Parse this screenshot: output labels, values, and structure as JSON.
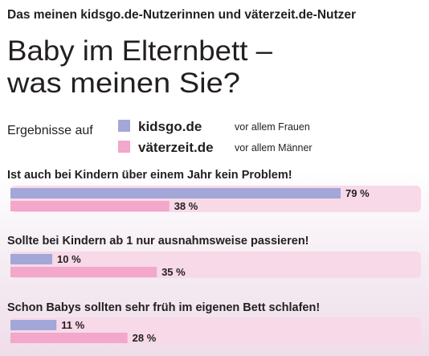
{
  "headline": "Das meinen kidsgo.de-Nutzerinnen und väterzeit.de-Nutzer",
  "title_line1": "Baby im Elternbett –",
  "title_line2": "was meinen Sie?",
  "legend": {
    "intro": "Ergebnisse auf",
    "items": [
      {
        "name": "kidsgo.de",
        "note": "vor allem Frauen",
        "color": "#a3a7d8"
      },
      {
        "name": "väterzeit.de",
        "note": "vor allem Männer",
        "color": "#f2a7cb"
      }
    ]
  },
  "chart_data": {
    "type": "bar",
    "orientation": "horizontal",
    "unit": "%",
    "categories": [
      "Ist auch bei Kindern über einem Jahr kein Problem!",
      "Sollte bei Kindern ab 1 nur ausnahmsweise passieren!",
      "Schon Babys sollten sehr früh im eigenen Bett schlafen!"
    ],
    "series": [
      {
        "name": "kidsgo.de",
        "values": [
          79,
          10,
          11
        ]
      },
      {
        "name": "väterzeit.de",
        "values": [
          38,
          35,
          28
        ]
      }
    ],
    "data_labels": [
      [
        "79 %",
        "10 %",
        "11 %"
      ],
      [
        "38 %",
        "35 %",
        "28 %"
      ]
    ],
    "xlim": [
      0,
      100
    ],
    "row_background": "#f7d9e8",
    "grid": false
  }
}
